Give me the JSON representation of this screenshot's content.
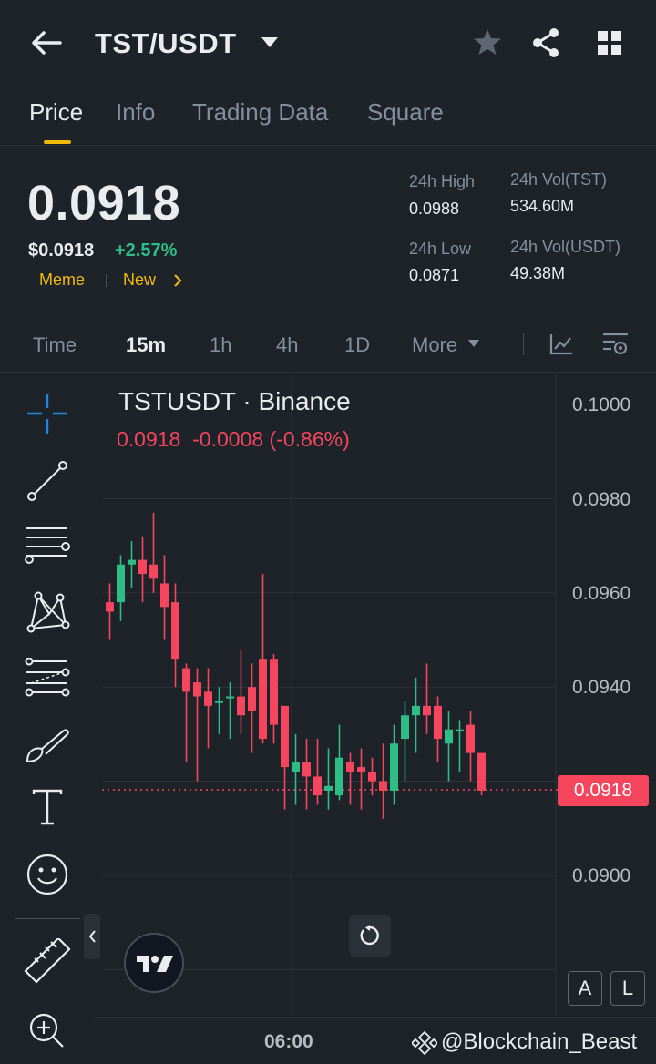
{
  "header": {
    "title": "TST/USDT"
  },
  "tabs": [
    {
      "label": "Price"
    },
    {
      "label": "Info"
    },
    {
      "label": "Trading Data"
    },
    {
      "label": "Square"
    }
  ],
  "price": {
    "last": "0.0918",
    "usd": "$0.0918",
    "change": "+2.57%",
    "tags": [
      "Meme",
      "New"
    ]
  },
  "stats": {
    "high_label": "24h High",
    "high": "0.0988",
    "low_label": "24h Low",
    "low": "0.0871",
    "vol_tst_label": "24h Vol(TST)",
    "vol_tst": "534.60M",
    "vol_usdt_label": "24h Vol(USDT)",
    "vol_usdt": "49.38M"
  },
  "timeframes": [
    {
      "label": "Time"
    },
    {
      "label": "15m"
    },
    {
      "label": "1h"
    },
    {
      "label": "4h"
    },
    {
      "label": "1D"
    },
    {
      "label": "More"
    }
  ],
  "chart": {
    "symbol": "TSTUSDT · Binance",
    "ohlc_price": "0.0918",
    "ohlc_change": "-0.0008 (-0.86%)",
    "current_price_tag": "0.0918",
    "y_ticks": [
      "0.1000",
      "0.0980",
      "0.0960",
      "0.0940",
      "0.0900"
    ],
    "x_tick": "06:00",
    "scale_buttons": [
      "A",
      "L"
    ]
  },
  "watermark": "@Blockchain_Beast",
  "colors": {
    "up": "#2ebd85",
    "down": "#f6465d",
    "accent": "#f0b90b",
    "bg": "#1e2329"
  },
  "chart_data": {
    "type": "candlestick",
    "ylim": [
      0.088,
      0.101
    ],
    "candles": [
      {
        "o": 0.0958,
        "h": 0.0962,
        "l": 0.095,
        "c": 0.0956
      },
      {
        "o": 0.0958,
        "h": 0.0968,
        "l": 0.0954,
        "c": 0.0966
      },
      {
        "o": 0.0966,
        "h": 0.0971,
        "l": 0.0961,
        "c": 0.0967
      },
      {
        "o": 0.0967,
        "h": 0.0972,
        "l": 0.0958,
        "c": 0.0964
      },
      {
        "o": 0.0966,
        "h": 0.0977,
        "l": 0.096,
        "c": 0.0963
      },
      {
        "o": 0.0962,
        "h": 0.0968,
        "l": 0.095,
        "c": 0.0957
      },
      {
        "o": 0.0958,
        "h": 0.0962,
        "l": 0.094,
        "c": 0.0946
      },
      {
        "o": 0.0944,
        "h": 0.0945,
        "l": 0.0924,
        "c": 0.0939
      },
      {
        "o": 0.0941,
        "h": 0.0944,
        "l": 0.092,
        "c": 0.0938
      },
      {
        "o": 0.0939,
        "h": 0.0944,
        "l": 0.0927,
        "c": 0.0936
      },
      {
        "o": 0.0937,
        "h": 0.094,
        "l": 0.093,
        "c": 0.0937
      },
      {
        "o": 0.0938,
        "h": 0.0941,
        "l": 0.0929,
        "c": 0.0938
      },
      {
        "o": 0.0938,
        "h": 0.0948,
        "l": 0.093,
        "c": 0.0934
      },
      {
        "o": 0.094,
        "h": 0.0945,
        "l": 0.0926,
        "c": 0.0935
      },
      {
        "o": 0.0946,
        "h": 0.0964,
        "l": 0.0928,
        "c": 0.0929
      },
      {
        "o": 0.0946,
        "h": 0.0947,
        "l": 0.0928,
        "c": 0.0932
      },
      {
        "o": 0.0936,
        "h": 0.0936,
        "l": 0.0914,
        "c": 0.0923
      },
      {
        "o": 0.0922,
        "h": 0.093,
        "l": 0.0915,
        "c": 0.0924
      },
      {
        "o": 0.0924,
        "h": 0.0929,
        "l": 0.0914,
        "c": 0.0921
      },
      {
        "o": 0.0921,
        "h": 0.0929,
        "l": 0.0915,
        "c": 0.0917
      },
      {
        "o": 0.0918,
        "h": 0.0927,
        "l": 0.0914,
        "c": 0.0919
      },
      {
        "o": 0.0917,
        "h": 0.0932,
        "l": 0.0916,
        "c": 0.0925
      },
      {
        "o": 0.0924,
        "h": 0.0926,
        "l": 0.0915,
        "c": 0.0922
      },
      {
        "o": 0.0923,
        "h": 0.0927,
        "l": 0.0914,
        "c": 0.0922
      },
      {
        "o": 0.0922,
        "h": 0.0925,
        "l": 0.0917,
        "c": 0.092
      },
      {
        "o": 0.092,
        "h": 0.0928,
        "l": 0.0912,
        "c": 0.0918
      },
      {
        "o": 0.0918,
        "h": 0.0932,
        "l": 0.0915,
        "c": 0.0928
      },
      {
        "o": 0.0929,
        "h": 0.0937,
        "l": 0.092,
        "c": 0.0934
      },
      {
        "o": 0.0934,
        "h": 0.0942,
        "l": 0.0926,
        "c": 0.0936
      },
      {
        "o": 0.0936,
        "h": 0.0945,
        "l": 0.093,
        "c": 0.0934
      },
      {
        "o": 0.0936,
        "h": 0.0938,
        "l": 0.0924,
        "c": 0.0929
      },
      {
        "o": 0.0928,
        "h": 0.0935,
        "l": 0.092,
        "c": 0.0931
      },
      {
        "o": 0.0931,
        "h": 0.0933,
        "l": 0.0922,
        "c": 0.0931
      },
      {
        "o": 0.0932,
        "h": 0.0935,
        "l": 0.092,
        "c": 0.0926
      },
      {
        "o": 0.0926,
        "h": 0.0926,
        "l": 0.0917,
        "c": 0.0918
      }
    ]
  }
}
